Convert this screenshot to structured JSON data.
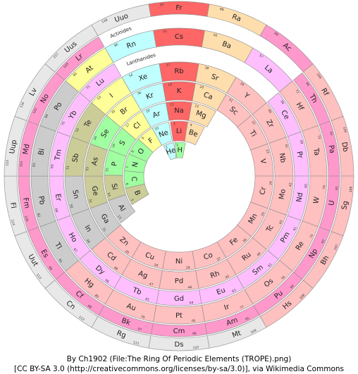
{
  "rings": [
    {
      "elements": [
        {
          "symbol": "H",
          "number": 1,
          "color": "#a0ffa0"
        },
        {
          "symbol": "He",
          "number": 2,
          "color": "#c0ffff"
        }
      ]
    },
    {
      "elements": [
        {
          "symbol": "Li",
          "number": 3,
          "color": "#ff6666"
        },
        {
          "symbol": "Be",
          "number": 4,
          "color": "#ffdead"
        },
        {
          "symbol": "B",
          "number": 5,
          "color": "#cccc99"
        },
        {
          "symbol": "C",
          "number": 6,
          "color": "#a0ffa0"
        },
        {
          "symbol": "N",
          "number": 7,
          "color": "#a0ffa0"
        },
        {
          "symbol": "O",
          "number": 8,
          "color": "#a0ffa0"
        },
        {
          "symbol": "F",
          "number": 9,
          "color": "#ffff99"
        },
        {
          "symbol": "Ne",
          "number": 10,
          "color": "#c0ffff"
        }
      ]
    },
    {
      "elements": [
        {
          "symbol": "Na",
          "number": 11,
          "color": "#ff6666"
        },
        {
          "symbol": "Mg",
          "number": 12,
          "color": "#ffdead"
        },
        {
          "symbol": "Al",
          "number": 13,
          "color": "#cccccc"
        },
        {
          "symbol": "Si",
          "number": 14,
          "color": "#cccc99"
        },
        {
          "symbol": "P",
          "number": 15,
          "color": "#a0ffa0"
        },
        {
          "symbol": "S",
          "number": 16,
          "color": "#a0ffa0"
        },
        {
          "symbol": "Cl",
          "number": 17,
          "color": "#ffff99"
        },
        {
          "symbol": "Ar",
          "number": 18,
          "color": "#c0ffff"
        }
      ]
    },
    {
      "elements": [
        {
          "symbol": "K",
          "number": 19,
          "color": "#ff6666"
        },
        {
          "symbol": "Ca",
          "number": 20,
          "color": "#ffdead"
        },
        {
          "symbol": "Sc",
          "number": 21,
          "color": "#ffc0c0"
        },
        {
          "symbol": "Ti",
          "number": 22,
          "color": "#ffc0c0"
        },
        {
          "symbol": "V",
          "number": 23,
          "color": "#ffc0c0"
        },
        {
          "symbol": "Cr",
          "number": 24,
          "color": "#ffc0c0"
        },
        {
          "symbol": "Mn",
          "number": 25,
          "color": "#ffc0c0"
        },
        {
          "symbol": "Fe",
          "number": 26,
          "color": "#ffc0c0"
        },
        {
          "symbol": "Co",
          "number": 27,
          "color": "#ffc0c0"
        },
        {
          "symbol": "Ni",
          "number": 28,
          "color": "#ffc0c0"
        },
        {
          "symbol": "Cu",
          "number": 29,
          "color": "#ffc0c0"
        },
        {
          "symbol": "Zn",
          "number": 30,
          "color": "#ffc0c0"
        },
        {
          "symbol": "Ga",
          "number": 31,
          "color": "#cccccc"
        },
        {
          "symbol": "Ge",
          "number": 32,
          "color": "#cccc99"
        },
        {
          "symbol": "As",
          "number": 33,
          "color": "#cccc99"
        },
        {
          "symbol": "Se",
          "number": 34,
          "color": "#a0ffa0"
        },
        {
          "symbol": "Br",
          "number": 35,
          "color": "#ffff99"
        },
        {
          "symbol": "Kr",
          "number": 36,
          "color": "#c0ffff"
        }
      ]
    },
    {
      "elements": [
        {
          "symbol": "Rb",
          "number": 37,
          "color": "#ff6666"
        },
        {
          "symbol": "Sr",
          "number": 38,
          "color": "#ffdead"
        },
        {
          "symbol": "Y",
          "number": 39,
          "color": "#ffc0c0"
        },
        {
          "symbol": "Zr",
          "number": 40,
          "color": "#ffc0c0"
        },
        {
          "symbol": "Nb",
          "number": 41,
          "color": "#ffc0c0"
        },
        {
          "symbol": "Mo",
          "number": 42,
          "color": "#ffc0c0"
        },
        {
          "symbol": "Tc",
          "number": 43,
          "color": "#ffc0c0"
        },
        {
          "symbol": "Ru",
          "number": 44,
          "color": "#ffc0c0"
        },
        {
          "symbol": "Rh",
          "number": 45,
          "color": "#ffc0c0"
        },
        {
          "symbol": "Pd",
          "number": 46,
          "color": "#ffc0c0"
        },
        {
          "symbol": "Ag",
          "number": 47,
          "color": "#ffc0c0"
        },
        {
          "symbol": "Cd",
          "number": 48,
          "color": "#ffc0c0"
        },
        {
          "symbol": "In",
          "number": 49,
          "color": "#cccccc"
        },
        {
          "symbol": "Sn",
          "number": 50,
          "color": "#cccccc"
        },
        {
          "symbol": "Sb",
          "number": 51,
          "color": "#cccc99"
        },
        {
          "symbol": "Te",
          "number": 52,
          "color": "#cccc99"
        },
        {
          "symbol": "I",
          "number": 53,
          "color": "#ffff99"
        },
        {
          "symbol": "Xe",
          "number": 54,
          "color": "#c0ffff"
        }
      ]
    },
    {
      "elements": [
        {
          "symbol": "Ce",
          "number": 58,
          "color": "#ffbfff"
        },
        {
          "symbol": "Pr",
          "number": 59,
          "color": "#ffbfff"
        },
        {
          "symbol": "Nd",
          "number": 60,
          "color": "#ffbfff"
        },
        {
          "symbol": "Pm",
          "number": 61,
          "color": "#ffbfff"
        },
        {
          "symbol": "Sm",
          "number": 62,
          "color": "#ffbfff"
        },
        {
          "symbol": "Eu",
          "number": 63,
          "color": "#ffbfff"
        },
        {
          "symbol": "Gd",
          "number": 64,
          "color": "#ffbfff"
        },
        {
          "symbol": "Tb",
          "number": 65,
          "color": "#ffbfff"
        },
        {
          "symbol": "Dy",
          "number": 66,
          "color": "#ffbfff"
        },
        {
          "symbol": "Ho",
          "number": 67,
          "color": "#ffbfff"
        },
        {
          "symbol": "Er",
          "number": 68,
          "color": "#ffbfff"
        },
        {
          "symbol": "Tm",
          "number": 69,
          "color": "#ffbfff"
        },
        {
          "symbol": "Yb",
          "number": 70,
          "color": "#ffbfff"
        },
        {
          "symbol": "Lu",
          "number": 71,
          "color": "#ffbfff"
        }
      ]
    },
    {
      "elements": [
        {
          "symbol": "Cs",
          "number": 55,
          "color": "#ff6666"
        },
        {
          "symbol": "Ba",
          "number": 56,
          "color": "#ffdead"
        },
        {
          "symbol": "La",
          "number": 57,
          "color": "#ffbfff"
        },
        {
          "symbol": "Hf",
          "number": 72,
          "color": "#ffc0c0"
        },
        {
          "symbol": "Ta",
          "number": 73,
          "color": "#ffc0c0"
        },
        {
          "symbol": "W",
          "number": 74,
          "color": "#ffc0c0"
        },
        {
          "symbol": "Re",
          "number": 75,
          "color": "#ffc0c0"
        },
        {
          "symbol": "Os",
          "number": 76,
          "color": "#ffc0c0"
        },
        {
          "symbol": "Ir",
          "number": 77,
          "color": "#ffc0c0"
        },
        {
          "symbol": "Pt",
          "number": 78,
          "color": "#ffc0c0"
        },
        {
          "symbol": "Au",
          "number": 79,
          "color": "#ffc0c0"
        },
        {
          "symbol": "Hg",
          "number": 80,
          "color": "#ffc0c0"
        },
        {
          "symbol": "Tl",
          "number": 81,
          "color": "#cccccc"
        },
        {
          "symbol": "Pb",
          "number": 82,
          "color": "#cccccc"
        },
        {
          "symbol": "Bi",
          "number": 83,
          "color": "#cccccc"
        },
        {
          "symbol": "Po",
          "number": 84,
          "color": "#cccccc"
        },
        {
          "symbol": "At",
          "number": 85,
          "color": "#ffff99"
        },
        {
          "symbol": "Rn",
          "number": 86,
          "color": "#c0ffff"
        }
      ]
    },
    {
      "elements": [
        {
          "symbol": "Th",
          "number": 90,
          "color": "#ff99cc"
        },
        {
          "symbol": "Pa",
          "number": 91,
          "color": "#ff99cc"
        },
        {
          "symbol": "U",
          "number": 92,
          "color": "#ff99cc"
        },
        {
          "symbol": "Np",
          "number": 93,
          "color": "#ff99cc"
        },
        {
          "symbol": "Pu",
          "number": 94,
          "color": "#ff99cc"
        },
        {
          "symbol": "Am",
          "number": 95,
          "color": "#ff99cc"
        },
        {
          "symbol": "Cm",
          "number": 96,
          "color": "#ff99cc"
        },
        {
          "symbol": "Bk",
          "number": 97,
          "color": "#ff99cc"
        },
        {
          "symbol": "Cf",
          "number": 98,
          "color": "#ff99cc"
        },
        {
          "symbol": "Es",
          "number": 99,
          "color": "#ff99cc"
        },
        {
          "symbol": "Fm",
          "number": 100,
          "color": "#ff99cc"
        },
        {
          "symbol": "Md",
          "number": 101,
          "color": "#ff99cc"
        },
        {
          "symbol": "No",
          "number": 102,
          "color": "#ff99cc"
        },
        {
          "symbol": "Lr",
          "number": 103,
          "color": "#ff99cc"
        }
      ]
    },
    {
      "elements": [
        {
          "symbol": "Fr",
          "number": 87,
          "color": "#ff6666"
        },
        {
          "symbol": "Ra",
          "number": 88,
          "color": "#ffdead"
        },
        {
          "symbol": "Ac",
          "number": 89,
          "color": "#ff99cc"
        },
        {
          "symbol": "Rf",
          "number": 104,
          "color": "#ffc0c0"
        },
        {
          "symbol": "Db",
          "number": 105,
          "color": "#ffc0c0"
        },
        {
          "symbol": "Sg",
          "number": 106,
          "color": "#ffc0c0"
        },
        {
          "symbol": "Bh",
          "number": 107,
          "color": "#ffc0c0"
        },
        {
          "symbol": "Hs",
          "number": 108,
          "color": "#ffc0c0"
        },
        {
          "symbol": "Mt",
          "number": 109,
          "color": "#e8e8e8"
        },
        {
          "symbol": "Ds",
          "number": 110,
          "color": "#e8e8e8"
        },
        {
          "symbol": "Rg",
          "number": 111,
          "color": "#e8e8e8"
        },
        {
          "symbol": "Cn",
          "number": 112,
          "color": "#e8e8e8"
        },
        {
          "symbol": "Uut",
          "number": 113,
          "color": "#e8e8e8"
        },
        {
          "symbol": "Fl",
          "number": 114,
          "color": "#e8e8e8"
        },
        {
          "symbol": "Uup",
          "number": 115,
          "color": "#e8e8e8"
        },
        {
          "symbol": "Lv",
          "number": 116,
          "color": "#e8e8e8"
        },
        {
          "symbol": "Uus",
          "number": 117,
          "color": "#e8e8e8"
        },
        {
          "symbol": "Uuo",
          "number": 118,
          "color": "#e8e8e8"
        }
      ]
    }
  ],
  "labels": {
    "lanthanides": "Lanthanides",
    "actinides": "Actinides"
  },
  "attribution": [
    "By Ch1902 (File:The Ring Of Periodic Elements (TROPE).png)",
    "[CC BY-SA 3.0 (http://creativecommons.org/licenses/by-sa/3.0)], via Wikimedia Commons"
  ]
}
